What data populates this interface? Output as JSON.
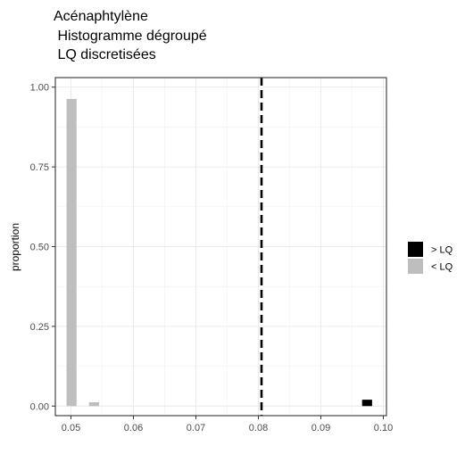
{
  "chart_data": {
    "type": "bar",
    "title_lines": [
      "Acénaphtylène",
      " Histogramme dégroupé",
      " LQ discretisées"
    ],
    "xlabel": "",
    "ylabel": "proportion",
    "xlim": [
      0.0475,
      0.1005
    ],
    "ylim": [
      -0.03,
      1.03
    ],
    "x_ticks": [
      0.05,
      0.06,
      0.07,
      0.08,
      0.09,
      0.1
    ],
    "x_tick_labels": [
      "0.05",
      "0.06",
      "0.07",
      "0.08",
      "0.09",
      "0.10"
    ],
    "y_ticks": [
      0,
      0.25,
      0.5,
      0.75,
      1
    ],
    "y_tick_labels": [
      "0.00",
      "0.25",
      "0.50",
      "0.75",
      "1.00"
    ],
    "bin_width": 0.0016,
    "series": [
      {
        "name": "> LQ",
        "color": "#000000",
        "bars": [
          {
            "x": 0.0974,
            "y": 0.02
          }
        ]
      },
      {
        "name": "< LQ",
        "color": "#bebebe",
        "bars": [
          {
            "x": 0.0501,
            "y": 0.963
          },
          {
            "x": 0.0537,
            "y": 0.012
          }
        ]
      }
    ],
    "reference_line": {
      "x": 0.0805,
      "style": "dashed",
      "color": "#000000"
    },
    "grid": true,
    "legend_position": "right"
  }
}
